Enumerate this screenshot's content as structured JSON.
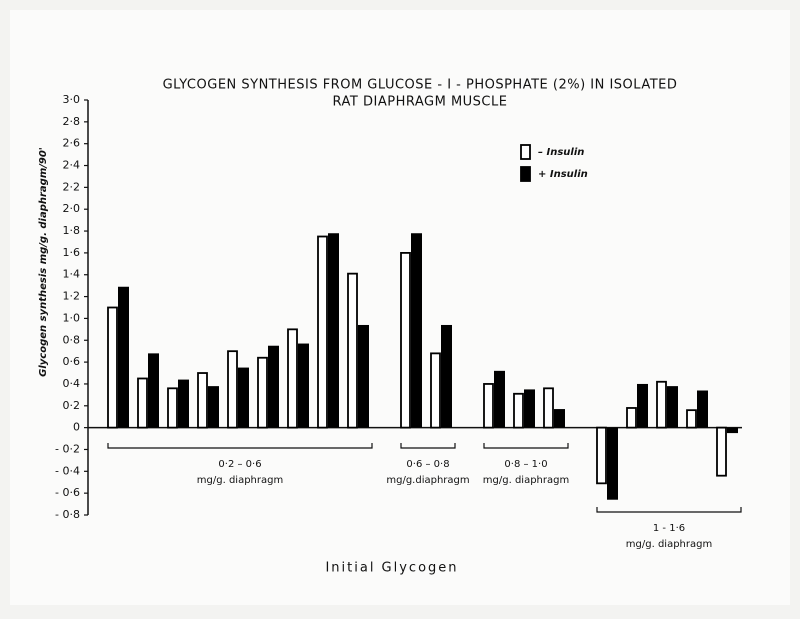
{
  "chart_data": {
    "type": "bar",
    "title": [
      "GLYCOGEN SYNTHESIS FROM GLUCOSE - I - PHOSPHATE (2%) IN ISOLATED",
      "RAT DIAPHRAGM MUSCLE"
    ],
    "y_label": "Glycogen synthesis mg/g. diaphragm/90'",
    "x_label": "Initial   Glycogen",
    "ylim": [
      -0.8,
      3.0
    ],
    "yticks": [
      {
        "value": 3.0,
        "label": "3·0"
      },
      {
        "value": 2.8,
        "label": "2·8"
      },
      {
        "value": 2.6,
        "label": "2·6"
      },
      {
        "value": 2.4,
        "label": "2·4"
      },
      {
        "value": 2.2,
        "label": "2·2"
      },
      {
        "value": 2.0,
        "label": "2·0"
      },
      {
        "value": 1.8,
        "label": "1·8"
      },
      {
        "value": 1.6,
        "label": "1·6"
      },
      {
        "value": 1.4,
        "label": "1·4"
      },
      {
        "value": 1.2,
        "label": "1·2"
      },
      {
        "value": 1.0,
        "label": "1·0"
      },
      {
        "value": 0.8,
        "label": "0·8"
      },
      {
        "value": 0.6,
        "label": "0·6"
      },
      {
        "value": 0.4,
        "label": "0·4"
      },
      {
        "value": 0.2,
        "label": "0·2"
      },
      0,
      {
        "value": -0.2,
        "label": "- 0·2"
      },
      {
        "value": -0.4,
        "label": "- 0·4"
      },
      {
        "value": -0.6,
        "label": "- 0·6"
      },
      {
        "value": -0.8,
        "label": "- 0·8"
      }
    ],
    "groups": [
      {
        "label": "0·2 – 0·6",
        "unit": "mg/g. diaphragm",
        "categories": [
          null,
          null,
          null,
          null,
          null,
          null,
          null,
          null,
          null
        ]
      },
      {
        "label": "0·6 – 0·8",
        "unit": "mg/g.diaphragm",
        "categories": [
          null,
          null
        ]
      },
      {
        "label": "0·8 – 1·0",
        "unit": "mg/g. diaphragm",
        "categories": [
          null,
          null,
          null
        ]
      },
      {
        "label": "1 - 1·6",
        "unit": "mg/g. diaphragm",
        "categories": [
          null,
          null,
          null,
          null,
          null
        ]
      }
    ],
    "series": [
      {
        "name": "– Insulin",
        "color": "#ffffff",
        "values": [
          1.1,
          0.45,
          0.36,
          0.5,
          0.7,
          0.64,
          0.9,
          1.75,
          1.41,
          1.6,
          0.68,
          0.4,
          0.31,
          0.36,
          -0.51,
          0.18,
          0.42,
          0.16,
          -0.44
        ]
      },
      {
        "name": "+ Insulin",
        "color": "#000000",
        "values": [
          1.29,
          0.68,
          0.44,
          0.38,
          0.55,
          0.75,
          0.77,
          1.78,
          0.94,
          1.78,
          0.94,
          0.52,
          0.35,
          0.17,
          -0.66,
          0.4,
          0.38,
          0.34,
          -0.05
        ]
      }
    ]
  }
}
